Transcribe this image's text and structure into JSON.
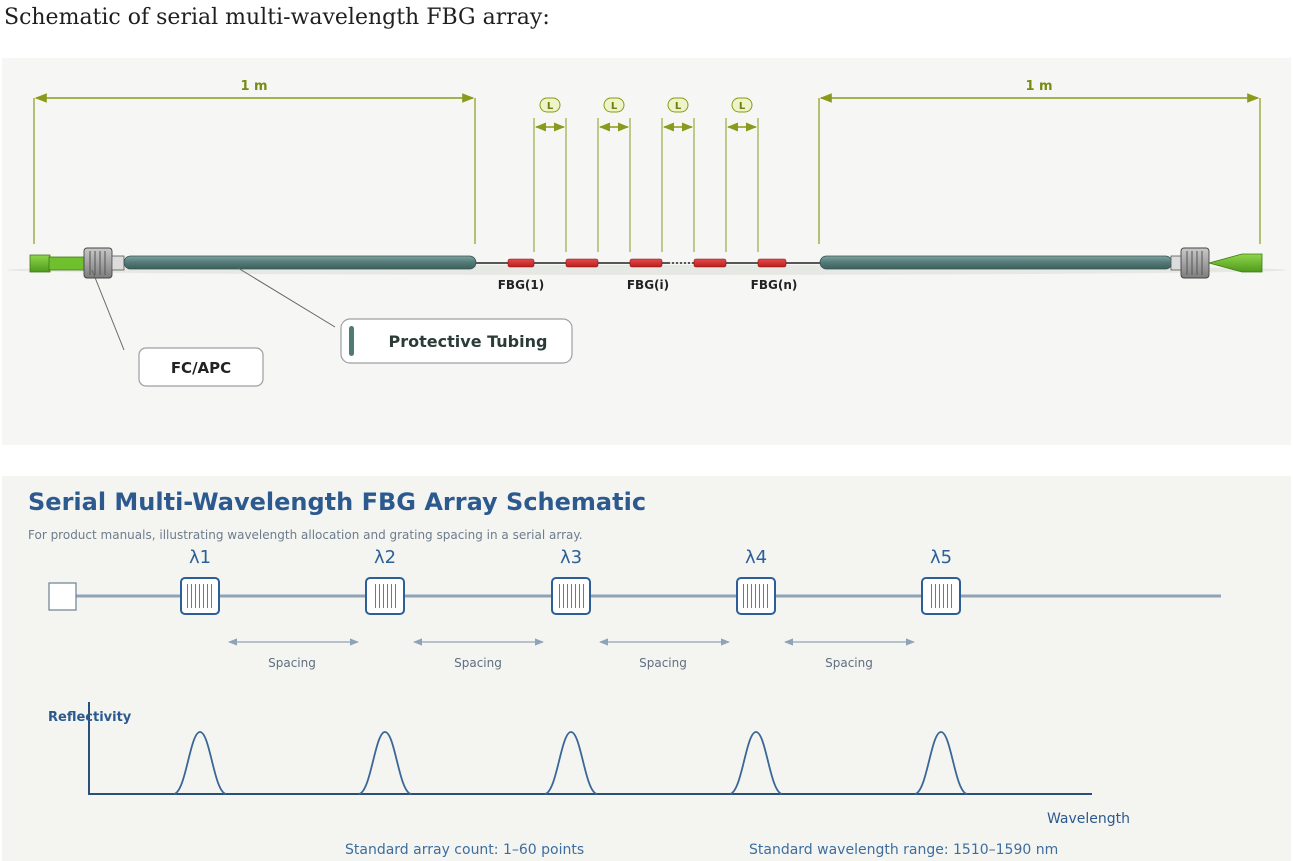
{
  "page_heading": "Schematic of serial multi-wavelength FBG array:",
  "top_diagram": {
    "length_left": "1 m",
    "length_right": "1 m",
    "spacing_badge": "L",
    "fbg_labels": [
      "FBG(1)",
      "FBG(i)",
      "FBG(n)"
    ],
    "connector_label": "FC/APC",
    "tubing_label": "Protective Tubing",
    "colors": {
      "dimension_line": "#8a9a1a",
      "tubing": "#4f7a76",
      "connector_boot": "#6cbf2a",
      "grating": "#d32a2a"
    }
  },
  "bottom_diagram": {
    "title": "Serial Multi-Wavelength FBG Array Schematic",
    "subtitle": "For product manuals, illustrating wavelength allocation and grating spacing in a serial array.",
    "wavelength_labels": [
      "λ1",
      "λ2",
      "λ3",
      "λ4",
      "λ5"
    ],
    "spacing_labels": [
      "Spacing",
      "Spacing",
      "Spacing",
      "Spacing"
    ],
    "y_axis_label": "Reflectivity",
    "x_axis_label": "Wavelength",
    "footer_left": "Standard array count: 1–60 points",
    "footer_right": "Standard wavelength range: 1510–1590 nm",
    "colors": {
      "title": "#2c5a8f",
      "fiber": "#8fa3b8",
      "grating_border": "#2c5f97",
      "curve": "#3a6797"
    }
  }
}
